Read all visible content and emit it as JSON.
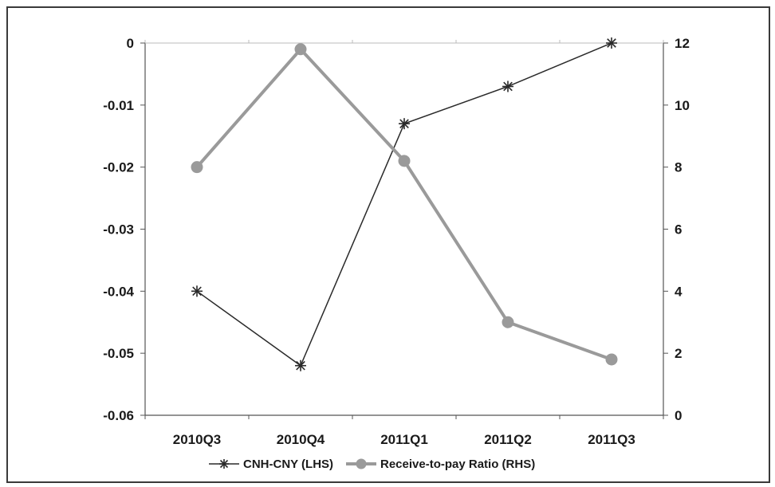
{
  "chart_data": {
    "type": "line",
    "categories": [
      "2010Q3",
      "2010Q4",
      "2011Q1",
      "2011Q2",
      "2011Q3"
    ],
    "series": [
      {
        "name": "CNH-CNY (LHS)",
        "axis": "left",
        "marker": "asterisk",
        "color": "#2a2a2a",
        "values": [
          -0.04,
          -0.052,
          -0.013,
          -0.007,
          0.0
        ]
      },
      {
        "name": "Receive-to-pay Ratio (RHS)",
        "axis": "right",
        "marker": "circle",
        "color": "#9a9a9a",
        "values": [
          8.0,
          11.8,
          8.2,
          3.0,
          1.8
        ]
      }
    ],
    "y_left": {
      "ylim": [
        -0.06,
        0
      ],
      "ticks": [
        0,
        -0.01,
        -0.02,
        -0.03,
        -0.04,
        -0.05,
        -0.06
      ],
      "tick_labels": [
        "0",
        "-0.01",
        "-0.02",
        "-0.03",
        "-0.04",
        "-0.05",
        "-0.06"
      ]
    },
    "y_right": {
      "ylim": [
        0,
        12
      ],
      "ticks": [
        12,
        10,
        8,
        6,
        4,
        2,
        0
      ],
      "tick_labels": [
        "12",
        "10",
        "8",
        "6",
        "4",
        "2",
        "0"
      ]
    },
    "grid": false,
    "legend_position": "bottom"
  }
}
